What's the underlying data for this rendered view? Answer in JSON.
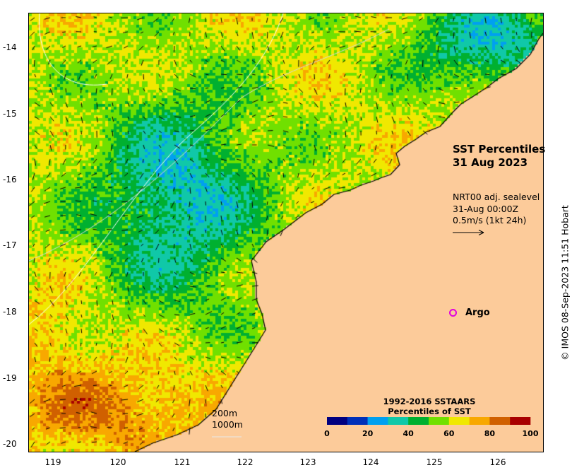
{
  "map": {
    "title_line1": "SST Percentiles",
    "title_line2": "31 Aug 2023",
    "vector_source": "NRT00 adj. sealevel",
    "vector_time": "31-Aug 00:00Z",
    "vector_scale": "0.5m/s (1kt 24h)",
    "argo_label": "Argo",
    "depth_contour_1": "200m",
    "depth_contour_2": "1000m",
    "credit": "© IMOS 08-Sep-2023 11:51 Hobart",
    "x_ticks": [
      "119",
      "120",
      "121",
      "122",
      "123",
      "124",
      "125",
      "126"
    ],
    "y_ticks": [
      "-14",
      "-15",
      "-16",
      "-17",
      "-18",
      "-19",
      "-20"
    ],
    "land_color": "#fccb9a"
  },
  "colorbar": {
    "title_line1": "1992-2016 SSTAARS",
    "title_line2": "Percentiles of SST",
    "tick_labels": [
      "0",
      "20",
      "40",
      "60",
      "80",
      "100"
    ],
    "colors": [
      "#000080",
      "#0030b8",
      "#00a0f0",
      "#10c8a8",
      "#00b030",
      "#70e000",
      "#f0e800",
      "#f8a800",
      "#d06000",
      "#a80000"
    ]
  }
}
